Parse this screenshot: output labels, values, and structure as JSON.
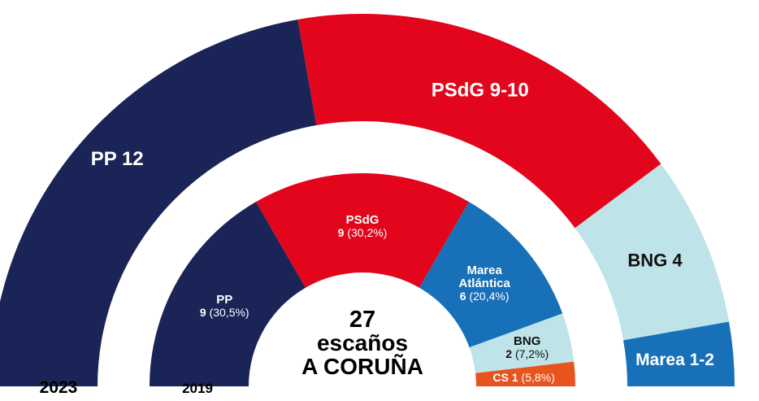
{
  "chart_data": {
    "type": "pie",
    "title": "27 escaños A CORUÑA",
    "center": {
      "line1": "27",
      "line2": "escaños",
      "line3": "A CORUÑA"
    },
    "year_labels": {
      "outer": "2023",
      "inner": "2019"
    },
    "total_seats": 27,
    "rings": [
      {
        "name": "2023",
        "slices": [
          {
            "party": "PP",
            "seats": 12,
            "label": "PP 12",
            "color": "#1a2456",
            "text_color": "#ffffff"
          },
          {
            "party": "PSdG",
            "seats": 9.5,
            "label": "PSdG 9-10",
            "color": "#e3051b",
            "text_color": "#ffffff"
          },
          {
            "party": "BNG",
            "seats": 4,
            "label": "BNG 4",
            "color": "#bee3e8",
            "text_color": "#111111"
          },
          {
            "party": "Marea",
            "seats": 1.5,
            "label": "Marea 1-2",
            "color": "#1770b8",
            "text_color": "#ffffff"
          }
        ]
      },
      {
        "name": "2019",
        "slices": [
          {
            "party": "PP",
            "seats": 9,
            "name_label": "PP",
            "value_label": "9",
            "pct_label": "(30,5%)",
            "color": "#1a2456",
            "text_color": "#ffffff"
          },
          {
            "party": "PSdG",
            "seats": 9,
            "name_label": "PSdG",
            "value_label": "9",
            "pct_label": "(30,2%)",
            "color": "#e3051b",
            "text_color": "#ffffff"
          },
          {
            "party": "Marea Atlántica",
            "seats": 6,
            "name_label": "Marea",
            "name_label2": "Atlántica",
            "value_label": "6",
            "pct_label": "(20,4%)",
            "color": "#1770b8",
            "text_color": "#ffffff"
          },
          {
            "party": "BNG",
            "seats": 2,
            "name_label": "BNG",
            "value_label": "2",
            "pct_label": "(7,2%)",
            "color": "#bee3e8",
            "text_color": "#111111"
          },
          {
            "party": "CS",
            "seats": 1,
            "name_label": "CS",
            "value_label": "1",
            "pct_label": "(5,8%)",
            "color": "#e8541e",
            "text_color": "#ffffff"
          }
        ]
      }
    ]
  }
}
